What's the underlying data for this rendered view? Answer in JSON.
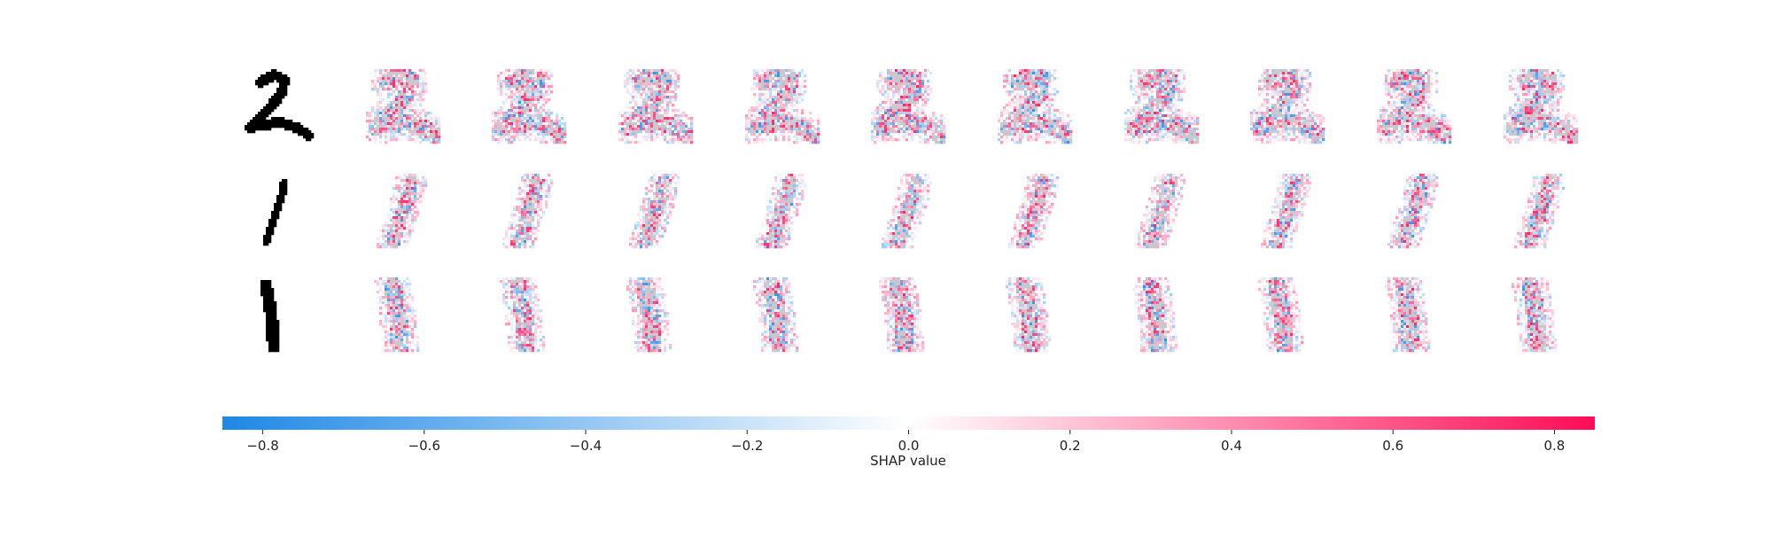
{
  "chart_data": {
    "type": "heatmap",
    "description_rows": [
      "2",
      "1",
      "1"
    ],
    "rows": [
      {
        "digit": "2"
      },
      {
        "digit": "1"
      },
      {
        "digit": "1"
      }
    ],
    "explanation_columns": 10,
    "colorbar": {
      "label": "SHAP value",
      "range": [
        -0.85,
        0.85
      ],
      "ticks": [
        -0.8,
        -0.6,
        -0.4,
        -0.2,
        0.0,
        0.2,
        0.4,
        0.6,
        0.8
      ],
      "tick_labels": [
        "−0.8",
        "−0.6",
        "−0.4",
        "−0.2",
        "0.0",
        "0.2",
        "0.4",
        "0.6",
        "0.8"
      ],
      "negative_color": "#1e88e5",
      "zero_color": "#ffffff",
      "positive_color": "#ff0d57"
    }
  }
}
